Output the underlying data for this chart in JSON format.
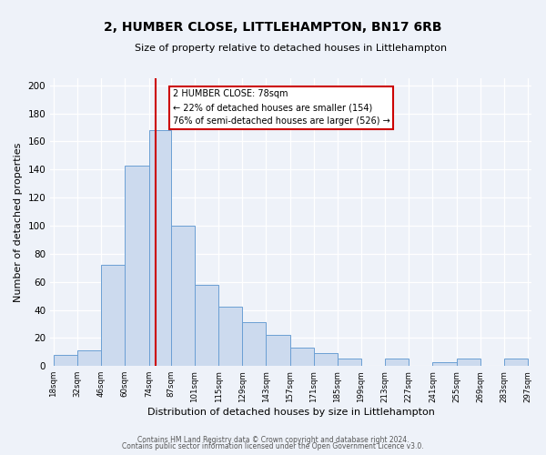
{
  "title": "2, HUMBER CLOSE, LITTLEHAMPTON, BN17 6RB",
  "subtitle": "Size of property relative to detached houses in Littlehampton",
  "xlabel": "Distribution of detached houses by size in Littlehampton",
  "ylabel": "Number of detached properties",
  "bar_edges": [
    18,
    32,
    46,
    60,
    74,
    87,
    101,
    115,
    129,
    143,
    157,
    171,
    185,
    199,
    213,
    227,
    241,
    255,
    269,
    283,
    297
  ],
  "bar_heights": [
    8,
    11,
    72,
    143,
    168,
    100,
    58,
    42,
    31,
    22,
    13,
    9,
    5,
    0,
    5,
    0,
    3,
    5,
    0,
    5
  ],
  "bar_color": "#ccdaee",
  "bar_edge_color": "#6b9fd4",
  "red_line_x": 78,
  "annotation_text": "2 HUMBER CLOSE: 78sqm\n← 22% of detached houses are smaller (154)\n76% of semi-detached houses are larger (526) →",
  "annotation_box_color": "#ffffff",
  "annotation_box_edge": "#cc0000",
  "ylim": [
    0,
    205
  ],
  "yticks": [
    0,
    20,
    40,
    60,
    80,
    100,
    120,
    140,
    160,
    180,
    200
  ],
  "bg_color": "#eef2f9",
  "grid_color": "#ffffff",
  "footer1": "Contains HM Land Registry data © Crown copyright and database right 2024.",
  "footer2": "Contains public sector information licensed under the Open Government Licence v3.0."
}
